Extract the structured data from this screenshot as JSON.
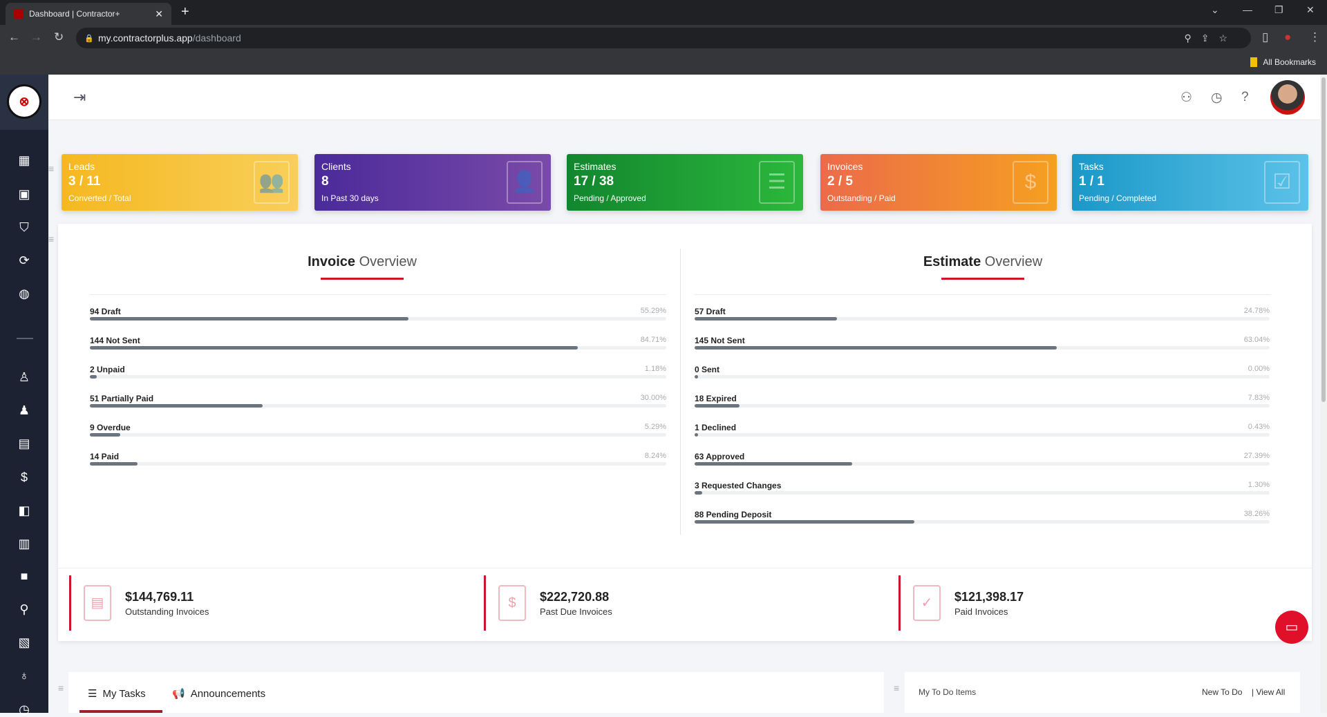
{
  "browser": {
    "tab_title": "Dashboard | Contractor+",
    "url_host": "my.contractorplus.app",
    "url_path": "/dashboard",
    "bookmarks_label": "All Bookmarks"
  },
  "cards": [
    {
      "title": "Leads",
      "value": "3 / 11",
      "sub": "Converted / Total",
      "color": "#f5b820",
      "color2": "#f9cf5a",
      "icon": "people-icon"
    },
    {
      "title": "Clients",
      "value": "8",
      "sub": "In Past 30 days",
      "color": "#4a2a9a",
      "color2": "#7a4aa8",
      "icon": "clients-icon"
    },
    {
      "title": "Estimates",
      "value": "17 / 38",
      "sub": "Pending / Approved",
      "color": "#12862e",
      "color2": "#2cb83c",
      "icon": "document-icon"
    },
    {
      "title": "Invoices",
      "value": "2 / 5",
      "sub": "Outstanding / Paid",
      "color": "#ec6a4a",
      "color2": "#f5a020",
      "icon": "receipt-icon"
    },
    {
      "title": "Tasks",
      "value": "1 / 1",
      "sub": "Pending / Completed",
      "color": "#1a98c8",
      "color2": "#5cc2e8",
      "icon": "checklist-icon"
    }
  ],
  "invoice_overview": {
    "title_bold": "Invoice",
    "title_rest": "Overview",
    "rows": [
      {
        "label": "94 Draft",
        "pct": "55.29%",
        "value": 55.29
      },
      {
        "label": "144 Not Sent",
        "pct": "84.71%",
        "value": 84.71
      },
      {
        "label": "2 Unpaid",
        "pct": "1.18%",
        "value": 1.18
      },
      {
        "label": "51 Partially Paid",
        "pct": "30.00%",
        "value": 30.0
      },
      {
        "label": "9 Overdue",
        "pct": "5.29%",
        "value": 5.29
      },
      {
        "label": "14 Paid",
        "pct": "8.24%",
        "value": 8.24
      }
    ]
  },
  "estimate_overview": {
    "title_bold": "Estimate",
    "title_rest": "Overview",
    "rows": [
      {
        "label": "57 Draft",
        "pct": "24.78%",
        "value": 24.78
      },
      {
        "label": "145 Not Sent",
        "pct": "63.04%",
        "value": 63.04
      },
      {
        "label": "0 Sent",
        "pct": "0.00%",
        "value": 0
      },
      {
        "label": "18 Expired",
        "pct": "7.83%",
        "value": 7.83
      },
      {
        "label": "1 Declined",
        "pct": "0.43%",
        "value": 0.43
      },
      {
        "label": "63 Approved",
        "pct": "27.39%",
        "value": 27.39
      },
      {
        "label": "3 Requested Changes",
        "pct": "1.30%",
        "value": 1.3
      },
      {
        "label": "88 Pending Deposit",
        "pct": "38.26%",
        "value": 38.26
      }
    ]
  },
  "stats": [
    {
      "amount": "$144,769.11",
      "label": "Outstanding Invoices"
    },
    {
      "amount": "$222,720.88",
      "label": "Past Due Invoices"
    },
    {
      "amount": "$121,398.17",
      "label": "Paid Invoices"
    }
  ],
  "tasks_panel": {
    "tab1": "My Tasks",
    "tab2": "Announcements"
  },
  "todo_panel": {
    "title": "My To Do Items",
    "new": "New To Do",
    "view_all": "| View All"
  }
}
